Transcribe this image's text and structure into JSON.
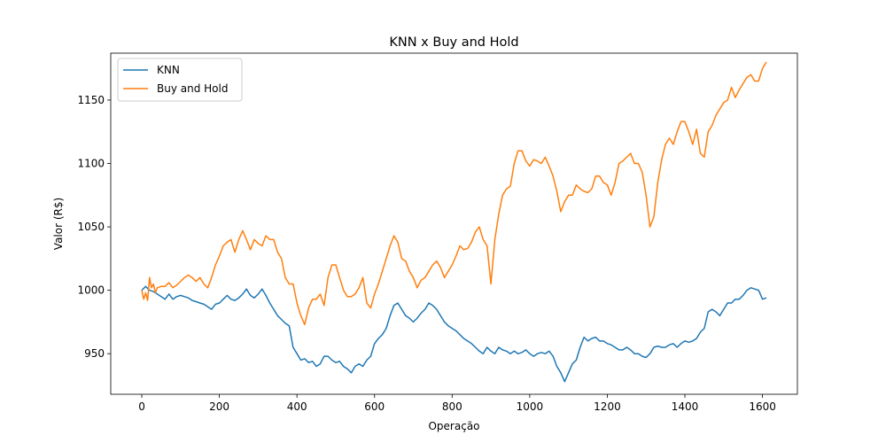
{
  "chart_data": {
    "type": "line",
    "title": "KNN x Buy and Hold",
    "xlabel": "Operação",
    "ylabel": "Valor (R$)",
    "xlim": [
      -80,
      1690
    ],
    "ylim": [
      918,
      1187
    ],
    "xticks": [
      0,
      200,
      400,
      600,
      800,
      1000,
      1200,
      1400,
      1600
    ],
    "yticks": [
      950,
      1000,
      1050,
      1100,
      1150
    ],
    "grid": false,
    "legend_position": "upper-left",
    "series": [
      {
        "name": "KNN",
        "color": "#1f77b4",
        "points": [
          [
            0,
            1000
          ],
          [
            10,
            1003
          ],
          [
            20,
            1000
          ],
          [
            30,
            999
          ],
          [
            40,
            997
          ],
          [
            50,
            995
          ],
          [
            60,
            993
          ],
          [
            70,
            997
          ],
          [
            80,
            993
          ],
          [
            90,
            995
          ],
          [
            100,
            996
          ],
          [
            110,
            995
          ],
          [
            120,
            994
          ],
          [
            130,
            992
          ],
          [
            140,
            991
          ],
          [
            150,
            990
          ],
          [
            160,
            989
          ],
          [
            170,
            987
          ],
          [
            180,
            985
          ],
          [
            190,
            989
          ],
          [
            200,
            990
          ],
          [
            210,
            993
          ],
          [
            220,
            996
          ],
          [
            230,
            993
          ],
          [
            240,
            992
          ],
          [
            250,
            994
          ],
          [
            260,
            997
          ],
          [
            270,
            1001
          ],
          [
            280,
            996
          ],
          [
            290,
            994
          ],
          [
            300,
            997
          ],
          [
            310,
            1001
          ],
          [
            320,
            996
          ],
          [
            330,
            990
          ],
          [
            340,
            985
          ],
          [
            350,
            980
          ],
          [
            360,
            977
          ],
          [
            370,
            974
          ],
          [
            380,
            972
          ],
          [
            390,
            955
          ],
          [
            400,
            950
          ],
          [
            410,
            945
          ],
          [
            420,
            946
          ],
          [
            430,
            943
          ],
          [
            440,
            944
          ],
          [
            450,
            940
          ],
          [
            460,
            942
          ],
          [
            470,
            948
          ],
          [
            480,
            948
          ],
          [
            490,
            945
          ],
          [
            500,
            943
          ],
          [
            510,
            944
          ],
          [
            520,
            940
          ],
          [
            530,
            938
          ],
          [
            540,
            935
          ],
          [
            550,
            940
          ],
          [
            560,
            942
          ],
          [
            570,
            940
          ],
          [
            580,
            945
          ],
          [
            590,
            948
          ],
          [
            600,
            958
          ],
          [
            610,
            962
          ],
          [
            620,
            965
          ],
          [
            630,
            970
          ],
          [
            640,
            980
          ],
          [
            650,
            988
          ],
          [
            660,
            990
          ],
          [
            670,
            985
          ],
          [
            680,
            980
          ],
          [
            690,
            978
          ],
          [
            700,
            975
          ],
          [
            710,
            978
          ],
          [
            720,
            982
          ],
          [
            730,
            985
          ],
          [
            740,
            990
          ],
          [
            750,
            988
          ],
          [
            760,
            985
          ],
          [
            770,
            980
          ],
          [
            780,
            975
          ],
          [
            790,
            972
          ],
          [
            800,
            970
          ],
          [
            810,
            968
          ],
          [
            820,
            965
          ],
          [
            830,
            962
          ],
          [
            840,
            960
          ],
          [
            850,
            958
          ],
          [
            860,
            955
          ],
          [
            870,
            952
          ],
          [
            880,
            950
          ],
          [
            890,
            955
          ],
          [
            900,
            952
          ],
          [
            910,
            950
          ],
          [
            920,
            955
          ],
          [
            930,
            953
          ],
          [
            940,
            952
          ],
          [
            950,
            950
          ],
          [
            960,
            952
          ],
          [
            970,
            950
          ],
          [
            980,
            951
          ],
          [
            990,
            953
          ],
          [
            1000,
            950
          ],
          [
            1010,
            948
          ],
          [
            1020,
            950
          ],
          [
            1030,
            951
          ],
          [
            1040,
            950
          ],
          [
            1050,
            952
          ],
          [
            1060,
            948
          ],
          [
            1070,
            940
          ],
          [
            1080,
            935
          ],
          [
            1090,
            928
          ],
          [
            1100,
            935
          ],
          [
            1110,
            942
          ],
          [
            1120,
            945
          ],
          [
            1130,
            955
          ],
          [
            1140,
            963
          ],
          [
            1150,
            960
          ],
          [
            1160,
            962
          ],
          [
            1170,
            963
          ],
          [
            1180,
            960
          ],
          [
            1190,
            960
          ],
          [
            1200,
            958
          ],
          [
            1210,
            957
          ],
          [
            1220,
            955
          ],
          [
            1230,
            953
          ],
          [
            1240,
            953
          ],
          [
            1250,
            955
          ],
          [
            1260,
            953
          ],
          [
            1270,
            950
          ],
          [
            1280,
            950
          ],
          [
            1290,
            948
          ],
          [
            1300,
            947
          ],
          [
            1310,
            950
          ],
          [
            1320,
            955
          ],
          [
            1330,
            956
          ],
          [
            1340,
            955
          ],
          [
            1350,
            955
          ],
          [
            1360,
            957
          ],
          [
            1370,
            958
          ],
          [
            1380,
            955
          ],
          [
            1390,
            958
          ],
          [
            1400,
            960
          ],
          [
            1410,
            959
          ],
          [
            1420,
            960
          ],
          [
            1430,
            962
          ],
          [
            1440,
            967
          ],
          [
            1450,
            970
          ],
          [
            1460,
            983
          ],
          [
            1470,
            985
          ],
          [
            1480,
            983
          ],
          [
            1490,
            980
          ],
          [
            1500,
            985
          ],
          [
            1510,
            990
          ],
          [
            1520,
            990
          ],
          [
            1530,
            993
          ],
          [
            1540,
            993
          ],
          [
            1550,
            996
          ],
          [
            1560,
            1000
          ],
          [
            1570,
            1002
          ],
          [
            1580,
            1001
          ],
          [
            1590,
            1000
          ],
          [
            1600,
            993
          ],
          [
            1610,
            994
          ]
        ]
      },
      {
        "name": "Buy and Hold",
        "color": "#ff7f0e",
        "points": [
          [
            0,
            1000
          ],
          [
            5,
            993
          ],
          [
            10,
            998
          ],
          [
            15,
            992
          ],
          [
            20,
            1010
          ],
          [
            25,
            1002
          ],
          [
            30,
            1005
          ],
          [
            35,
            998
          ],
          [
            40,
            1002
          ],
          [
            50,
            1003
          ],
          [
            60,
            1003
          ],
          [
            70,
            1006
          ],
          [
            80,
            1002
          ],
          [
            90,
            1004
          ],
          [
            100,
            1007
          ],
          [
            110,
            1010
          ],
          [
            120,
            1012
          ],
          [
            130,
            1010
          ],
          [
            140,
            1007
          ],
          [
            150,
            1010
          ],
          [
            160,
            1005
          ],
          [
            170,
            1002
          ],
          [
            180,
            1010
          ],
          [
            190,
            1020
          ],
          [
            200,
            1027
          ],
          [
            210,
            1035
          ],
          [
            220,
            1038
          ],
          [
            230,
            1040
          ],
          [
            240,
            1030
          ],
          [
            250,
            1040
          ],
          [
            260,
            1047
          ],
          [
            270,
            1040
          ],
          [
            280,
            1032
          ],
          [
            290,
            1040
          ],
          [
            300,
            1037
          ],
          [
            310,
            1035
          ],
          [
            320,
            1043
          ],
          [
            330,
            1040
          ],
          [
            340,
            1040
          ],
          [
            350,
            1030
          ],
          [
            360,
            1025
          ],
          [
            370,
            1010
          ],
          [
            380,
            1005
          ],
          [
            390,
            1005
          ],
          [
            400,
            990
          ],
          [
            410,
            980
          ],
          [
            420,
            973
          ],
          [
            430,
            986
          ],
          [
            440,
            993
          ],
          [
            450,
            993
          ],
          [
            460,
            997
          ],
          [
            470,
            988
          ],
          [
            480,
            1010
          ],
          [
            490,
            1020
          ],
          [
            500,
            1020
          ],
          [
            510,
            1010
          ],
          [
            520,
            1000
          ],
          [
            530,
            995
          ],
          [
            540,
            995
          ],
          [
            550,
            997
          ],
          [
            560,
            1002
          ],
          [
            570,
            1010
          ],
          [
            580,
            990
          ],
          [
            590,
            986
          ],
          [
            600,
            997
          ],
          [
            610,
            1005
          ],
          [
            620,
            1015
          ],
          [
            630,
            1025
          ],
          [
            640,
            1035
          ],
          [
            650,
            1043
          ],
          [
            660,
            1038
          ],
          [
            670,
            1025
          ],
          [
            680,
            1023
          ],
          [
            690,
            1015
          ],
          [
            700,
            1010
          ],
          [
            710,
            1002
          ],
          [
            720,
            1008
          ],
          [
            730,
            1010
          ],
          [
            740,
            1015
          ],
          [
            750,
            1020
          ],
          [
            760,
            1023
          ],
          [
            770,
            1018
          ],
          [
            780,
            1010
          ],
          [
            790,
            1015
          ],
          [
            800,
            1020
          ],
          [
            810,
            1027
          ],
          [
            820,
            1035
          ],
          [
            830,
            1032
          ],
          [
            840,
            1033
          ],
          [
            850,
            1038
          ],
          [
            860,
            1046
          ],
          [
            870,
            1050
          ],
          [
            880,
            1040
          ],
          [
            890,
            1035
          ],
          [
            900,
            1005
          ],
          [
            910,
            1040
          ],
          [
            920,
            1060
          ],
          [
            930,
            1075
          ],
          [
            940,
            1080
          ],
          [
            950,
            1082
          ],
          [
            960,
            1100
          ],
          [
            970,
            1110
          ],
          [
            980,
            1110
          ],
          [
            990,
            1102
          ],
          [
            1000,
            1098
          ],
          [
            1010,
            1103
          ],
          [
            1020,
            1102
          ],
          [
            1030,
            1100
          ],
          [
            1040,
            1105
          ],
          [
            1050,
            1098
          ],
          [
            1060,
            1090
          ],
          [
            1070,
            1078
          ],
          [
            1080,
            1062
          ],
          [
            1090,
            1070
          ],
          [
            1100,
            1075
          ],
          [
            1110,
            1075
          ],
          [
            1120,
            1083
          ],
          [
            1130,
            1080
          ],
          [
            1140,
            1078
          ],
          [
            1150,
            1077
          ],
          [
            1160,
            1080
          ],
          [
            1170,
            1090
          ],
          [
            1180,
            1090
          ],
          [
            1190,
            1085
          ],
          [
            1200,
            1083
          ],
          [
            1210,
            1075
          ],
          [
            1220,
            1085
          ],
          [
            1230,
            1100
          ],
          [
            1240,
            1102
          ],
          [
            1250,
            1105
          ],
          [
            1260,
            1108
          ],
          [
            1270,
            1100
          ],
          [
            1280,
            1100
          ],
          [
            1290,
            1093
          ],
          [
            1300,
            1075
          ],
          [
            1310,
            1050
          ],
          [
            1320,
            1058
          ],
          [
            1330,
            1085
          ],
          [
            1340,
            1103
          ],
          [
            1350,
            1115
          ],
          [
            1360,
            1120
          ],
          [
            1370,
            1115
          ],
          [
            1380,
            1125
          ],
          [
            1390,
            1133
          ],
          [
            1400,
            1133
          ],
          [
            1410,
            1125
          ],
          [
            1420,
            1115
          ],
          [
            1430,
            1127
          ],
          [
            1440,
            1108
          ],
          [
            1450,
            1105
          ],
          [
            1460,
            1125
          ],
          [
            1470,
            1130
          ],
          [
            1480,
            1138
          ],
          [
            1490,
            1143
          ],
          [
            1500,
            1148
          ],
          [
            1510,
            1150
          ],
          [
            1520,
            1160
          ],
          [
            1530,
            1152
          ],
          [
            1540,
            1158
          ],
          [
            1550,
            1163
          ],
          [
            1560,
            1168
          ],
          [
            1570,
            1170
          ],
          [
            1580,
            1165
          ],
          [
            1590,
            1165
          ],
          [
            1600,
            1175
          ],
          [
            1610,
            1180
          ]
        ]
      }
    ]
  }
}
